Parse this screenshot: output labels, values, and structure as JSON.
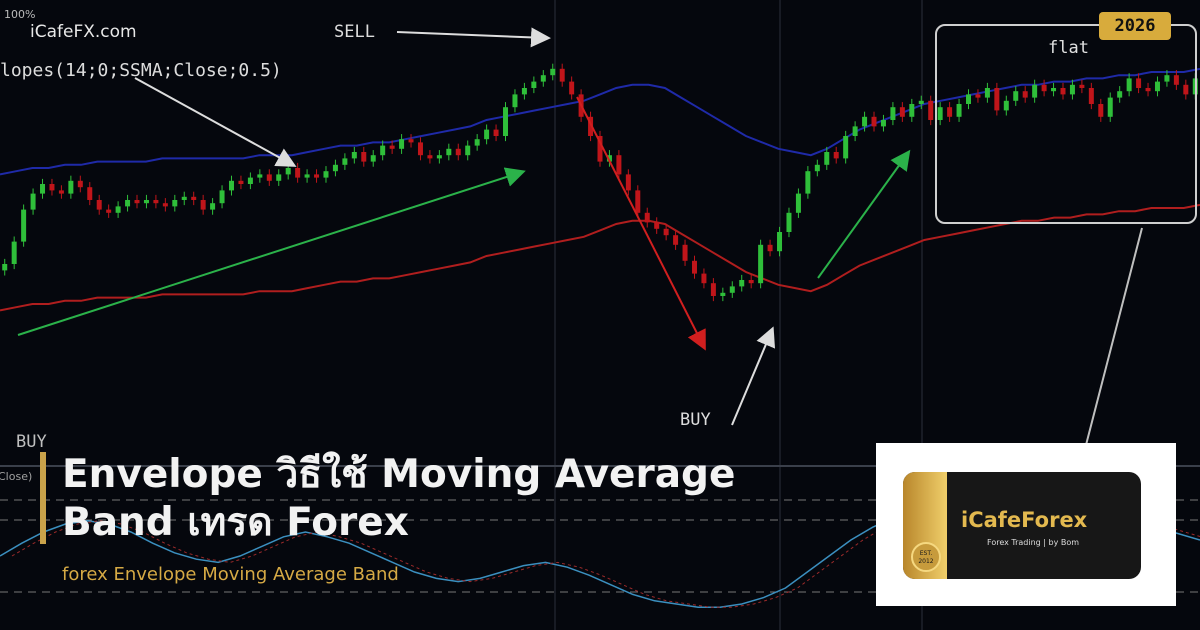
{
  "header": {
    "percent_label": "100%",
    "site": "iCafeFX.com",
    "indicator_label": "lopes(14;0;SSMA;Close;0.5)",
    "year_badge": "2026"
  },
  "annotations": {
    "sell": "SELL",
    "buy": "BUY",
    "buy_left": "BUY",
    "flat": "flat",
    "close_label": "Close)"
  },
  "title": "Envelope วิธีใช้ Moving Average Band เทรด Forex",
  "subtitle": "forex Envelope Moving Average Band",
  "logo": {
    "name": "iCafeForex",
    "tagline": "Forex Trading | by Bom",
    "badge_top": "EST.",
    "badge_bottom": "2012"
  },
  "colors": {
    "up_candle": "#2fbf3a",
    "down_candle": "#c0151a",
    "upper_band": "#1f2aa8",
    "lower_band": "#b01e1e",
    "accent": "#d6aa45",
    "uptrend_arrow": "#2bb24a",
    "downtrend_arrow": "#d11f1f"
  },
  "chart_data": {
    "type": "candlestick",
    "title": "",
    "xlabel": "",
    "ylabel": "",
    "ylim": [
      0,
      100
    ],
    "closes": [
      30,
      37,
      47,
      52,
      55,
      53,
      52,
      56,
      54,
      50,
      47,
      46,
      48,
      50,
      49,
      50,
      49,
      48,
      50,
      51,
      50,
      47,
      49,
      53,
      56,
      55,
      57,
      58,
      56,
      58,
      60,
      57,
      58,
      57,
      59,
      61,
      63,
      65,
      62,
      64,
      67,
      66,
      69,
      68,
      64,
      63,
      64,
      66,
      64,
      67,
      69,
      72,
      70,
      79,
      83,
      85,
      87,
      89,
      91,
      87,
      83,
      76,
      70,
      62,
      64,
      58,
      53,
      46,
      43,
      41,
      39,
      36,
      31,
      27,
      24,
      20,
      21,
      23,
      25,
      24,
      36,
      34,
      40,
      46,
      52,
      59,
      61,
      65,
      63,
      70,
      73,
      76,
      73,
      75,
      79,
      76,
      80,
      81,
      75,
      79,
      76,
      80,
      83,
      82,
      85,
      78,
      81,
      84,
      82,
      86,
      84,
      85,
      83,
      86,
      85,
      80,
      76,
      82,
      84,
      88,
      85,
      84,
      87,
      89,
      86,
      83,
      88
    ],
    "upper_band": [
      58,
      59,
      60,
      60,
      61,
      61,
      62,
      62,
      62,
      62,
      63,
      63,
      63,
      63,
      63,
      63,
      64,
      64,
      64,
      65,
      66,
      67,
      67,
      68,
      68,
      69,
      70,
      71,
      72,
      73,
      75,
      76,
      77,
      78,
      79,
      80,
      81,
      83,
      85,
      86,
      86,
      85,
      82,
      79,
      76,
      73,
      70,
      68,
      66,
      65,
      64,
      66,
      69,
      72,
      74,
      76,
      78,
      80,
      81,
      82,
      83,
      84,
      85,
      86,
      86,
      87,
      87,
      88,
      88,
      89,
      89,
      90,
      90,
      90,
      91
    ],
    "lower_band": [
      28,
      29,
      30,
      30,
      31,
      31,
      32,
      32,
      32,
      32,
      33,
      33,
      33,
      33,
      33,
      33,
      34,
      34,
      34,
      35,
      36,
      37,
      37,
      38,
      38,
      39,
      40,
      41,
      42,
      43,
      45,
      46,
      47,
      48,
      49,
      50,
      51,
      53,
      55,
      56,
      56,
      55,
      52,
      49,
      46,
      43,
      40,
      38,
      36,
      35,
      34,
      36,
      39,
      42,
      44,
      46,
      48,
      50,
      51,
      52,
      53,
      54,
      55,
      56,
      56,
      57,
      57,
      58,
      58,
      59,
      59,
      60,
      60,
      60,
      61
    ],
    "oscillator": [
      40,
      48,
      55,
      60,
      62,
      60,
      55,
      48,
      42,
      38,
      36,
      40,
      46,
      52,
      55,
      52,
      48,
      42,
      36,
      30,
      26,
      24,
      26,
      30,
      34,
      36,
      33,
      28,
      22,
      16,
      12,
      10,
      8,
      8,
      10,
      14,
      20,
      30,
      40,
      50,
      58,
      64,
      68,
      70,
      66,
      60,
      54,
      50,
      48,
      50,
      54,
      58,
      60,
      58,
      54,
      50
    ],
    "annotations": [
      "SELL",
      "BUY",
      "flat"
    ]
  }
}
